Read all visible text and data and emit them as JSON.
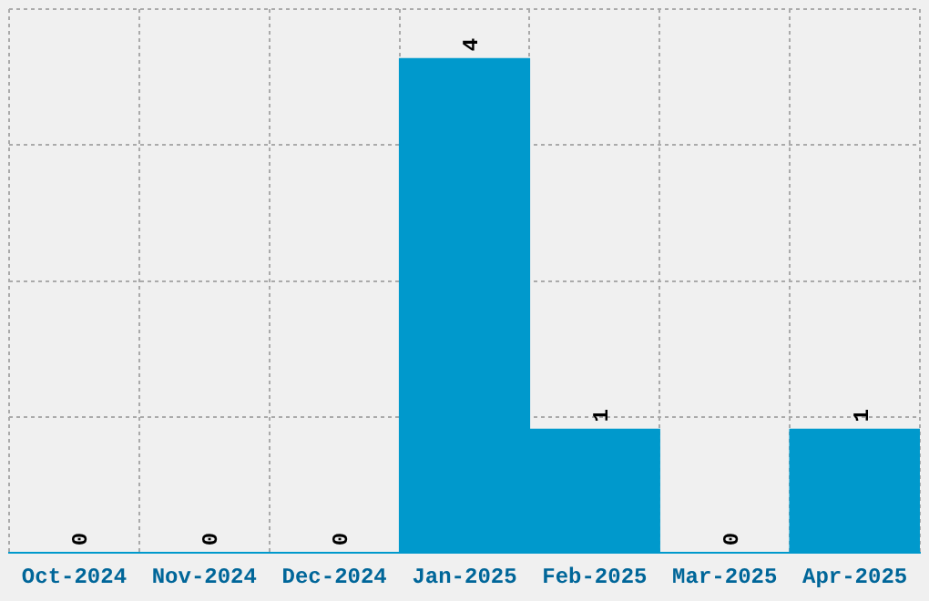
{
  "chart_data": {
    "type": "bar",
    "categories": [
      "Oct-2024",
      "Nov-2024",
      "Dec-2024",
      "Jan-2025",
      "Feb-2025",
      "Mar-2025",
      "Apr-2025"
    ],
    "values": [
      0,
      0,
      0,
      4,
      1,
      0,
      1
    ],
    "color": "#0099cc",
    "ylim": [
      0,
      4.4
    ],
    "yticks": [
      {
        "value": 0,
        "label": null
      },
      {
        "value": 1.1,
        "label": null
      },
      {
        "value": 2.2,
        "label": null
      },
      {
        "value": 3.3,
        "label": null
      },
      {
        "value": 4.4,
        "label": null
      }
    ],
    "grid": true,
    "tick_labels": "x",
    "data_labels": true
  }
}
